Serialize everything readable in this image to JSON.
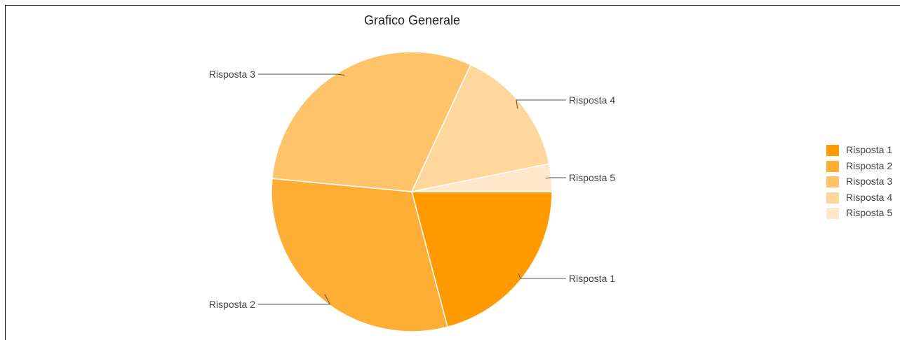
{
  "chart_data": {
    "type": "pie",
    "title": "Grafico Generale",
    "categories": [
      "Risposta 1",
      "Risposta 2",
      "Risposta 3",
      "Risposta 4",
      "Risposta 5"
    ],
    "values": [
      20.9,
      30.6,
      30.4,
      14.9,
      3.2
    ],
    "colors": [
      "#FF9B00",
      "#FFAE35",
      "#FFC46A",
      "#FFD79D",
      "#FFE8CA"
    ],
    "legend_position": "right",
    "legend_labels": [
      "Risposta 1",
      "Risposta 2",
      "Risposta 3",
      "Risposta 4",
      "Risposta 5"
    ]
  }
}
